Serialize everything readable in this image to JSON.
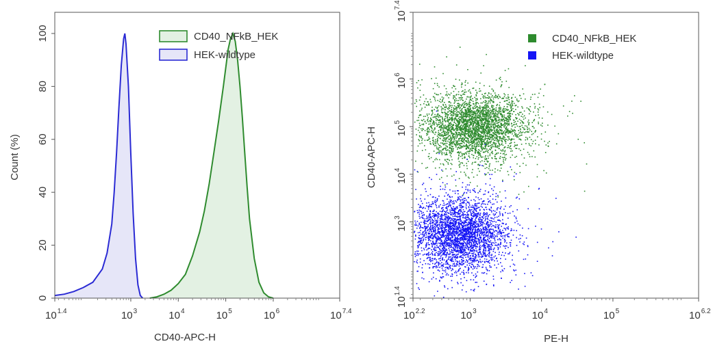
{
  "chart_data": [
    {
      "type": "histogram",
      "title": "",
      "xlabel": "CD40-APC-H",
      "ylabel": "Count (%)",
      "x_scale": "log10",
      "xlim": [
        25.1,
        25118864
      ],
      "ylim": [
        0,
        108
      ],
      "x_ticks": [
        {
          "base": "10",
          "exp": "1.4"
        },
        {
          "base": "10",
          "exp": "3"
        },
        {
          "base": "10",
          "exp": "4"
        },
        {
          "base": "10",
          "exp": "5"
        },
        {
          "base": "10",
          "exp": "6"
        },
        {
          "base": "10",
          "exp": "7.4"
        }
      ],
      "y_ticks": [
        "0",
        "20",
        "40",
        "60",
        "80",
        "100"
      ],
      "grid": false,
      "legend_position": "top-right",
      "series": [
        {
          "name": "CD40_NFkB_HEK",
          "color": "#2e8b2e",
          "fill": "#e3f1e3",
          "points": [
            [
              2512,
              0
            ],
            [
              3548,
              0.5
            ],
            [
              5012,
              1.5
            ],
            [
              7079,
              3
            ],
            [
              10000,
              5.5
            ],
            [
              14125,
              9
            ],
            [
              19953,
              16
            ],
            [
              28184,
              25
            ],
            [
              35481,
              33
            ],
            [
              44668,
              43
            ],
            [
              56234,
              55
            ],
            [
              70795,
              67
            ],
            [
              89125,
              80
            ],
            [
              100000,
              87
            ],
            [
              112202,
              94
            ],
            [
              125893,
              98
            ],
            [
              141254,
              100
            ],
            [
              158489,
              97
            ],
            [
              177828,
              90
            ],
            [
              199526,
              80
            ],
            [
              223872,
              68
            ],
            [
              251189,
              55
            ],
            [
              281838,
              42
            ],
            [
              316228,
              30
            ],
            [
              398107,
              15
            ],
            [
              501187,
              6
            ],
            [
              630957,
              2
            ],
            [
              794328,
              0.5
            ],
            [
              1000000,
              0
            ]
          ]
        },
        {
          "name": "HEK-wildtype",
          "color": "#2a2ad4",
          "fill": "#e6e6f8",
          "points": [
            [
              25.1,
              1
            ],
            [
              39.8,
              1.5
            ],
            [
              63.1,
              2.5
            ],
            [
              100,
              4
            ],
            [
              158.5,
              6
            ],
            [
              251.2,
              11
            ],
            [
              316.2,
              17
            ],
            [
              398.1,
              28
            ],
            [
              446.7,
              40
            ],
            [
              501.2,
              55
            ],
            [
              562.3,
              72
            ],
            [
              631,
              88
            ],
            [
              707.9,
              98
            ],
            [
              749.9,
              100
            ],
            [
              794.3,
              96
            ],
            [
              891.3,
              80
            ],
            [
              1000,
              55
            ],
            [
              1122,
              32
            ],
            [
              1259,
              15
            ],
            [
              1413,
              5
            ],
            [
              1585,
              1
            ],
            [
              1778,
              0
            ]
          ]
        }
      ]
    },
    {
      "type": "scatter",
      "title": "",
      "xlabel": "PE-H",
      "ylabel": "CD40-APC-H",
      "x_scale": "log10",
      "y_scale": "log10",
      "xlim": [
        158.5,
        1584893
      ],
      "ylim": [
        25.1,
        25118864
      ],
      "x_ticks": [
        {
          "base": "10",
          "exp": "2.2"
        },
        {
          "base": "10",
          "exp": "3"
        },
        {
          "base": "10",
          "exp": "4"
        },
        {
          "base": "10",
          "exp": "5"
        },
        {
          "base": "10",
          "exp": "6.2"
        }
      ],
      "y_ticks": [
        {
          "base": "10",
          "exp": "1.4"
        },
        {
          "base": "10",
          "exp": "3"
        },
        {
          "base": "10",
          "exp": "4"
        },
        {
          "base": "10",
          "exp": "5"
        },
        {
          "base": "10",
          "exp": "6"
        },
        {
          "base": "10",
          "exp": "7.4"
        }
      ],
      "grid": false,
      "legend_position": "top-right",
      "series": [
        {
          "name": "CD40_NFkB_HEK",
          "color": "#2e8b2e",
          "center": [
            1122,
            100000
          ],
          "log_spread": [
            0.36,
            0.36
          ],
          "n_points": 3200
        },
        {
          "name": "HEK-wildtype",
          "color": "#1515f5",
          "center": [
            708,
            562
          ],
          "log_spread": [
            0.32,
            0.38
          ],
          "n_points": 3200
        }
      ]
    }
  ]
}
